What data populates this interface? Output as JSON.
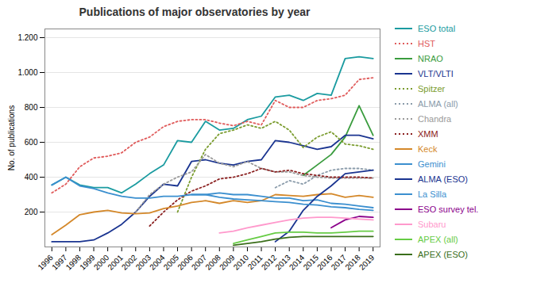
{
  "chart_data": {
    "type": "line",
    "title": "Publications of major observatories by year",
    "ylabel": "No. of publications",
    "x": [
      1996,
      1997,
      1998,
      1999,
      2000,
      2001,
      2002,
      2003,
      2004,
      2005,
      2006,
      2007,
      2008,
      2009,
      2010,
      2011,
      2012,
      2013,
      2014,
      2015,
      2016,
      2017,
      2018,
      2019
    ],
    "xlim": [
      1995.5,
      2019.5
    ],
    "xticks": [
      1996,
      1997,
      1998,
      1999,
      2000,
      2001,
      2002,
      2003,
      2004,
      2005,
      2006,
      2007,
      2008,
      2009,
      2010,
      2011,
      2012,
      2013,
      2014,
      2015,
      2016,
      2017,
      2018,
      2019
    ],
    "ylim": [
      0,
      1250
    ],
    "yticks": [
      200,
      400,
      600,
      800,
      {
        "value": 1000,
        "label": "1.000"
      },
      {
        "value": 1200,
        "label": "1.200"
      }
    ],
    "grid": true,
    "legend": "right",
    "series": [
      {
        "name": "ESO total",
        "color": "#1A9BA0",
        "line_style": "solid",
        "values": [
          355,
          400,
          355,
          340,
          340,
          310,
          360,
          420,
          470,
          610,
          600,
          720,
          670,
          680,
          730,
          750,
          860,
          870,
          840,
          880,
          870,
          1080,
          1090,
          1080
        ]
      },
      {
        "name": "HST",
        "color": "#E05C5C",
        "line_style": "dotted",
        "values": [
          310,
          360,
          460,
          510,
          520,
          540,
          600,
          630,
          690,
          720,
          730,
          730,
          710,
          695,
          720,
          700,
          840,
          800,
          800,
          840,
          850,
          870,
          960,
          970
        ]
      },
      {
        "name": "NRAO",
        "color": "#3A9C3E",
        "line_style": "solid",
        "values": [
          null,
          null,
          null,
          null,
          null,
          null,
          null,
          null,
          null,
          null,
          null,
          null,
          null,
          null,
          null,
          null,
          null,
          null,
          410,
          470,
          530,
          630,
          810,
          640
        ]
      },
      {
        "name": "VLT/VLTI",
        "color": "#1A3490",
        "line_style": "solid",
        "values": [
          30,
          30,
          30,
          40,
          80,
          130,
          200,
          290,
          360,
          350,
          490,
          500,
          480,
          470,
          490,
          500,
          610,
          600,
          580,
          560,
          575,
          640,
          640,
          620
        ]
      },
      {
        "name": "Spitzer",
        "color": "#7A9C2E",
        "line_style": "dotted",
        "values": [
          null,
          null,
          null,
          null,
          null,
          null,
          null,
          null,
          null,
          200,
          400,
          560,
          650,
          670,
          700,
          680,
          720,
          670,
          570,
          630,
          660,
          590,
          580,
          560
        ]
      },
      {
        "name": "ALMA (all)",
        "color": "#8A9BAA",
        "line_style": "dotted",
        "values": [
          null,
          null,
          null,
          null,
          null,
          null,
          null,
          null,
          null,
          null,
          null,
          null,
          null,
          null,
          null,
          null,
          340,
          380,
          360,
          410,
          440,
          450,
          450,
          440
        ]
      },
      {
        "name": "Chandra",
        "color": "#999999",
        "line_style": "dotted",
        "values": [
          null,
          null,
          null,
          null,
          null,
          null,
          200,
          300,
          360,
          400,
          430,
          530,
          480,
          460,
          490,
          450,
          430,
          430,
          410,
          400,
          395,
          395,
          395,
          395
        ]
      },
      {
        "name": "XMM",
        "color": "#8B2020",
        "line_style": "dotted",
        "values": [
          null,
          null,
          null,
          null,
          null,
          null,
          null,
          120,
          200,
          270,
          320,
          350,
          390,
          400,
          420,
          450,
          430,
          440,
          420,
          410,
          400,
          400,
          400,
          395
        ]
      },
      {
        "name": "Keck",
        "color": "#D4882A",
        "line_style": "solid",
        "values": [
          70,
          125,
          185,
          200,
          210,
          195,
          190,
          195,
          220,
          235,
          255,
          265,
          250,
          265,
          255,
          265,
          300,
          295,
          290,
          300,
          305,
          285,
          295,
          285
        ]
      },
      {
        "name": "Gemini",
        "color": "#3B8FCF",
        "line_style": "solid",
        "values": [
          null,
          null,
          null,
          null,
          null,
          null,
          null,
          null,
          null,
          null,
          300,
          300,
          310,
          300,
          300,
          290,
          280,
          280,
          265,
          270,
          250,
          245,
          235,
          225
        ]
      },
      {
        "name": "ALMA (ESO)",
        "color": "#1A3490",
        "line_style": "solid",
        "values": [
          null,
          null,
          null,
          null,
          null,
          null,
          null,
          null,
          null,
          null,
          null,
          null,
          null,
          null,
          null,
          null,
          30,
          90,
          210,
          290,
          350,
          420,
          430,
          440
        ]
      },
      {
        "name": "La Silla",
        "color": "#3B8FCF",
        "line_style": "solid",
        "values": [
          355,
          400,
          350,
          335,
          310,
          290,
          280,
          280,
          290,
          290,
          300,
          300,
          285,
          275,
          270,
          265,
          260,
          255,
          245,
          240,
          230,
          225,
          215,
          210
        ]
      },
      {
        "name": "ESO survey tel.",
        "color": "#8B008B",
        "line_style": "solid",
        "values": [
          null,
          null,
          null,
          null,
          null,
          null,
          null,
          null,
          null,
          null,
          null,
          null,
          null,
          null,
          null,
          null,
          null,
          null,
          null,
          null,
          110,
          155,
          175,
          170
        ]
      },
      {
        "name": "Subaru",
        "color": "#FF99CC",
        "line_style": "solid",
        "values": [
          null,
          null,
          null,
          null,
          null,
          null,
          null,
          null,
          null,
          null,
          null,
          null,
          80,
          90,
          110,
          125,
          140,
          155,
          165,
          170,
          170,
          165,
          160,
          155
        ]
      },
      {
        "name": "APEX (all)",
        "color": "#66CC44",
        "line_style": "solid",
        "values": [
          null,
          null,
          null,
          null,
          null,
          null,
          null,
          null,
          null,
          null,
          null,
          null,
          null,
          20,
          40,
          60,
          80,
          85,
          85,
          80,
          80,
          85,
          90,
          90
        ]
      },
      {
        "name": "APEX (ESO)",
        "color": "#3A6E1A",
        "line_style": "solid",
        "values": [
          null,
          null,
          null,
          null,
          null,
          null,
          null,
          null,
          null,
          null,
          null,
          null,
          null,
          10,
          20,
          30,
          45,
          55,
          60,
          60,
          60,
          60,
          60,
          60
        ]
      }
    ]
  }
}
